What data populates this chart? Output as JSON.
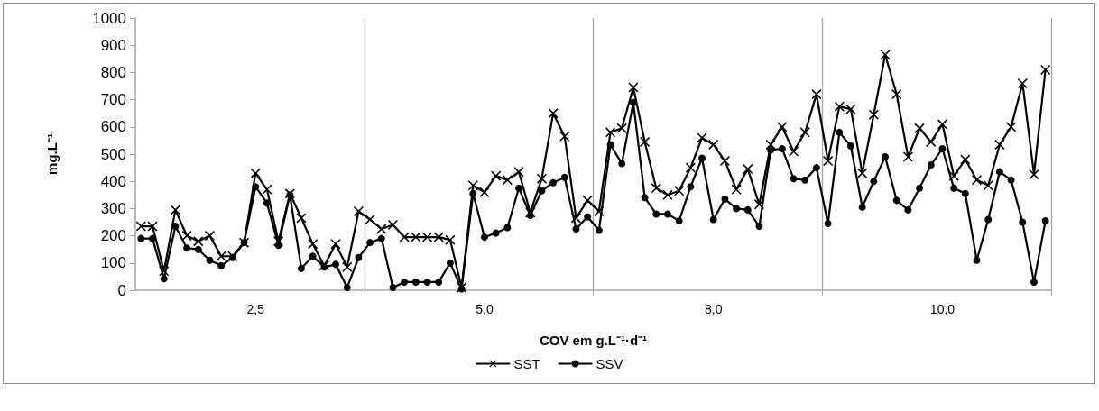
{
  "chart_data": {
    "type": "line",
    "xlabel": "COV em g.L⁻¹·d⁻¹",
    "ylabel": "mg.L⁻¹",
    "categories": [
      null,
      null,
      null,
      null,
      null,
      null,
      null,
      null,
      null,
      null,
      "2,5",
      null,
      null,
      null,
      null,
      null,
      null,
      null,
      null,
      null,
      null,
      null,
      null,
      null,
      null,
      null,
      null,
      null,
      null,
      null,
      "5,0",
      null,
      null,
      null,
      null,
      null,
      null,
      null,
      null,
      null,
      null,
      null,
      null,
      null,
      null,
      null,
      null,
      null,
      null,
      null,
      "8,0",
      null,
      null,
      null,
      null,
      null,
      null,
      null,
      null,
      null,
      null,
      null,
      null,
      null,
      null,
      null,
      null,
      null,
      null,
      null,
      "10,0",
      null,
      null,
      null,
      null,
      null,
      null,
      null,
      null,
      null
    ],
    "ylim": [
      0,
      1000
    ],
    "yticks": [
      0,
      100,
      200,
      300,
      400,
      500,
      600,
      700,
      800,
      900,
      1000
    ],
    "grid": "x",
    "legend": "bottom",
    "line_style": "solid",
    "series": [
      {
        "name": "SST",
        "color": "#000000",
        "marker": "cross",
        "values": [
          235,
          235,
          70,
          295,
          200,
          180,
          200,
          125,
          125,
          175,
          430,
          370,
          180,
          355,
          265,
          170,
          90,
          170,
          85,
          290,
          260,
          225,
          240,
          195,
          195,
          195,
          195,
          185,
          10,
          385,
          360,
          420,
          405,
          435,
          285,
          410,
          650,
          565,
          265,
          330,
          290,
          580,
          595,
          745,
          545,
          375,
          350,
          365,
          450,
          560,
          535,
          475,
          370,
          445,
          315,
          535,
          600,
          510,
          580,
          720,
          475,
          675,
          665,
          430,
          645,
          865,
          720,
          490,
          595,
          545,
          610,
          420,
          480,
          405,
          385,
          535,
          600,
          760,
          425,
          810
        ]
      },
      {
        "name": "SSV",
        "color": "#000000",
        "marker": "circle",
        "values": [
          190,
          190,
          42,
          235,
          155,
          150,
          110,
          90,
          120,
          175,
          380,
          320,
          165,
          350,
          80,
          125,
          85,
          95,
          10,
          120,
          175,
          190,
          10,
          30,
          30,
          30,
          30,
          100,
          5,
          355,
          195,
          210,
          230,
          375,
          275,
          365,
          395,
          415,
          225,
          270,
          220,
          535,
          465,
          690,
          340,
          280,
          280,
          255,
          380,
          485,
          260,
          335,
          300,
          295,
          235,
          515,
          520,
          410,
          405,
          450,
          245,
          580,
          530,
          305,
          400,
          490,
          330,
          295,
          375,
          460,
          520,
          375,
          355,
          110,
          260,
          435,
          405,
          250,
          30,
          255
        ]
      }
    ]
  }
}
